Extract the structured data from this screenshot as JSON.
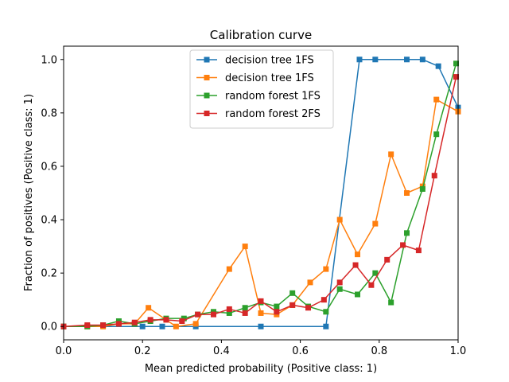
{
  "chart_data": {
    "type": "line",
    "title": "Calibration curve",
    "xlabel": "Mean predicted probability (Positive class: 1)",
    "ylabel": "Fraction of positives (Positive class: 1)",
    "xlim": [
      0.0,
      1.0
    ],
    "ylim": [
      -0.05,
      1.05
    ],
    "xticks": [
      0.0,
      0.2,
      0.4,
      0.6,
      0.8,
      1.0
    ],
    "xtick_labels": [
      "0.0",
      "0.2",
      "0.4",
      "0.6",
      "0.8",
      "1.0"
    ],
    "yticks": [
      0.0,
      0.2,
      0.4,
      0.6,
      0.8,
      1.0
    ],
    "ytick_labels": [
      "0.0",
      "0.2",
      "0.4",
      "0.6",
      "0.8",
      "1.0"
    ],
    "grid": false,
    "legend_position": "upper center",
    "marker": "square",
    "series": [
      {
        "name": "decision tree 1FS",
        "color": "#1f77b4",
        "x": [
          0.0,
          0.2,
          0.25,
          0.335,
          0.5,
          0.665,
          0.75,
          0.79,
          0.87,
          0.91,
          0.95,
          1.0
        ],
        "y": [
          0.0,
          0.0,
          0.0,
          0.0,
          0.0,
          0.0,
          1.0,
          1.0,
          1.0,
          1.0,
          0.975,
          0.82
        ]
      },
      {
        "name": "decision tree 1FS",
        "color": "#ff7f0e",
        "x": [
          0.0,
          0.06,
          0.1,
          0.14,
          0.18,
          0.215,
          0.26,
          0.285,
          0.335,
          0.42,
          0.46,
          0.5,
          0.54,
          0.58,
          0.625,
          0.665,
          0.7,
          0.745,
          0.79,
          0.83,
          0.87,
          0.91,
          0.945,
          1.0
        ],
        "y": [
          0.0,
          0.0,
          0.0,
          0.01,
          0.01,
          0.07,
          0.025,
          0.0,
          0.01,
          0.215,
          0.3,
          0.05,
          0.045,
          0.08,
          0.165,
          0.215,
          0.4,
          0.27,
          0.385,
          0.645,
          0.5,
          0.525,
          0.85,
          0.805
        ]
      },
      {
        "name": "random forest 1FS",
        "color": "#2ca02c",
        "x": [
          0.0,
          0.06,
          0.1,
          0.14,
          0.18,
          0.22,
          0.26,
          0.305,
          0.34,
          0.38,
          0.42,
          0.46,
          0.5,
          0.54,
          0.58,
          0.62,
          0.665,
          0.7,
          0.745,
          0.79,
          0.83,
          0.87,
          0.91,
          0.945,
          0.995
        ],
        "y": [
          0.0,
          0.0,
          0.005,
          0.02,
          0.01,
          0.02,
          0.03,
          0.03,
          0.045,
          0.055,
          0.05,
          0.07,
          0.09,
          0.075,
          0.125,
          0.075,
          0.055,
          0.14,
          0.12,
          0.2,
          0.09,
          0.35,
          0.515,
          0.72,
          0.985
        ]
      },
      {
        "name": "random forest 2FS",
        "color": "#d62728",
        "x": [
          0.0,
          0.06,
          0.1,
          0.14,
          0.18,
          0.22,
          0.26,
          0.3,
          0.34,
          0.38,
          0.42,
          0.46,
          0.5,
          0.54,
          0.58,
          0.62,
          0.66,
          0.7,
          0.74,
          0.78,
          0.82,
          0.86,
          0.9,
          0.94,
          0.995
        ],
        "y": [
          0.0,
          0.005,
          0.005,
          0.01,
          0.015,
          0.025,
          0.025,
          0.02,
          0.045,
          0.045,
          0.065,
          0.05,
          0.095,
          0.055,
          0.08,
          0.07,
          0.1,
          0.165,
          0.23,
          0.155,
          0.25,
          0.305,
          0.285,
          0.565,
          0.935
        ]
      }
    ]
  }
}
